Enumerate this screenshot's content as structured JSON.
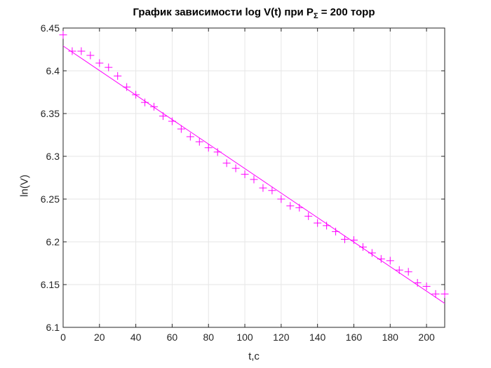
{
  "chart_data": {
    "type": "scatter",
    "title_main": "График зависимости log V(t) при P",
    "title_sub": "Σ",
    "title_tail": " = 200 торр",
    "xlabel": "t,c",
    "ylabel": "ln(V)",
    "xlim": [
      0,
      210
    ],
    "ylim": [
      6.1,
      6.45
    ],
    "xticks": [
      0,
      20,
      40,
      60,
      80,
      100,
      120,
      140,
      160,
      180,
      200
    ],
    "yticks": [
      6.1,
      6.15,
      6.2,
      6.25,
      6.3,
      6.35,
      6.4,
      6.45
    ],
    "grid": true,
    "color": "#ff00ff",
    "series": [
      {
        "marker": "+",
        "x": [
          0,
          5,
          10,
          15,
          20,
          25,
          30,
          35,
          40,
          45,
          50,
          55,
          60,
          65,
          70,
          75,
          80,
          85,
          90,
          95,
          100,
          105,
          110,
          115,
          120,
          125,
          130,
          135,
          140,
          145,
          150,
          155,
          160,
          165,
          170,
          175,
          180,
          185,
          190,
          195,
          200,
          205,
          210
        ],
        "y": [
          6.442,
          6.423,
          6.423,
          6.418,
          6.409,
          6.404,
          6.394,
          6.381,
          6.372,
          6.363,
          6.358,
          6.347,
          6.341,
          6.332,
          6.323,
          6.317,
          6.31,
          6.305,
          6.292,
          6.286,
          6.279,
          6.273,
          6.263,
          6.26,
          6.25,
          6.242,
          6.24,
          6.23,
          6.222,
          6.219,
          6.212,
          6.203,
          6.202,
          6.194,
          6.187,
          6.18,
          6.178,
          6.167,
          6.165,
          6.152,
          6.148,
          6.139,
          6.139
        ]
      },
      {
        "marker": "line",
        "x": [
          0,
          210
        ],
        "y": [
          6.429,
          6.128
        ]
      }
    ]
  }
}
